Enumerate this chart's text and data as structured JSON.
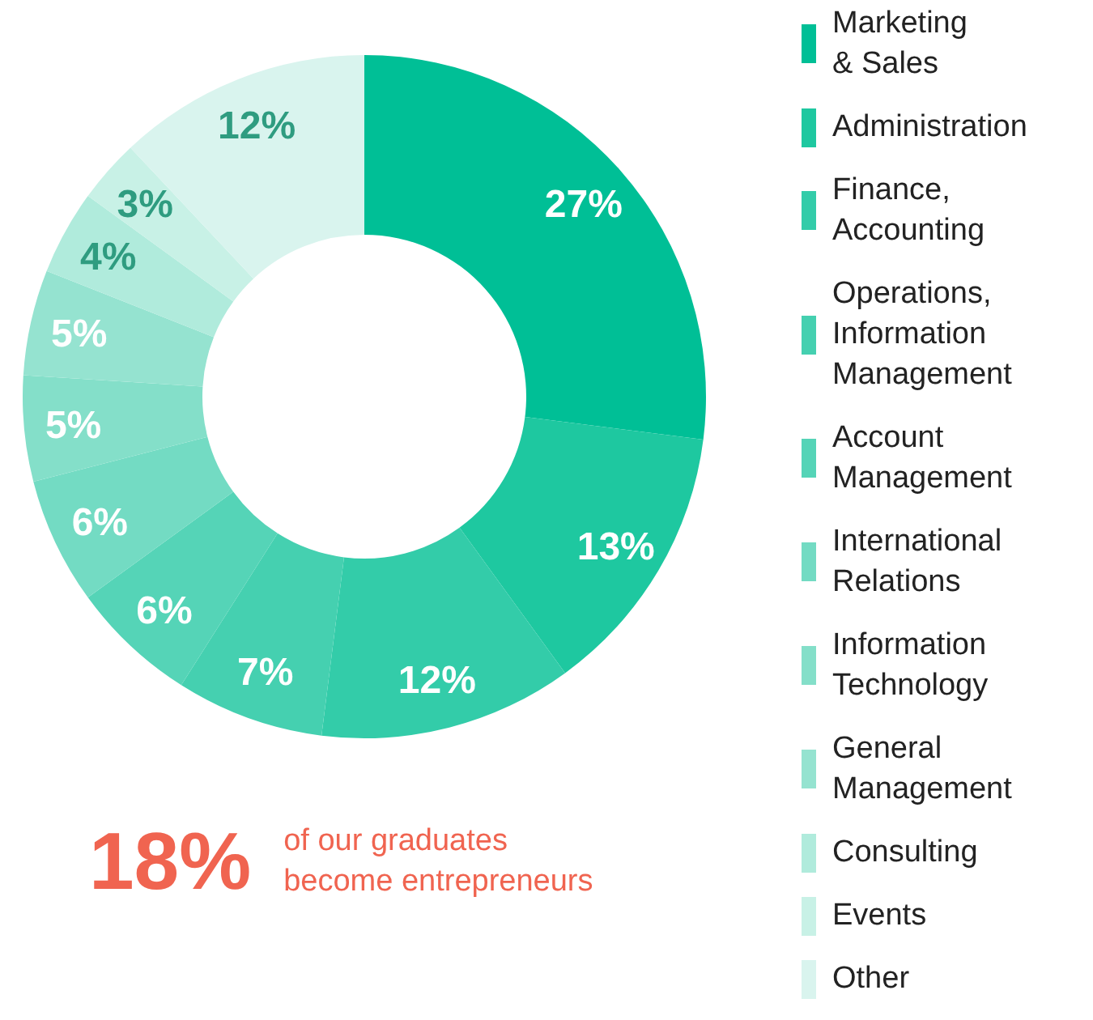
{
  "chart_data": {
    "type": "donut",
    "categories": [
      "Marketing\n& Sales",
      "Administration",
      "Finance,\nAccounting",
      "Operations,\nInformation\nManagement",
      "Account\nManagement",
      "International\nRelations",
      "Information\nTechnology",
      "General\nManagement",
      "Consulting",
      "Events",
      "Other"
    ],
    "values": [
      27,
      13,
      12,
      7,
      6,
      6,
      5,
      5,
      4,
      3,
      12
    ],
    "value_labels": [
      "27%",
      "13%",
      "12%",
      "7%",
      "6%",
      "6%",
      "5%",
      "5%",
      "4%",
      "3%",
      "12%"
    ],
    "colors": [
      "#00bf96",
      "#1ec8a0",
      "#33cca9",
      "#45d0b0",
      "#55d4b7",
      "#73dbc3",
      "#84dfc9",
      "#95e3d0",
      "#b0ebdc",
      "#c8f1e6",
      "#d9f4ee"
    ],
    "legend": "right",
    "annotations": [
      "18%",
      "of our graduates become entrepreneurs"
    ]
  }
}
